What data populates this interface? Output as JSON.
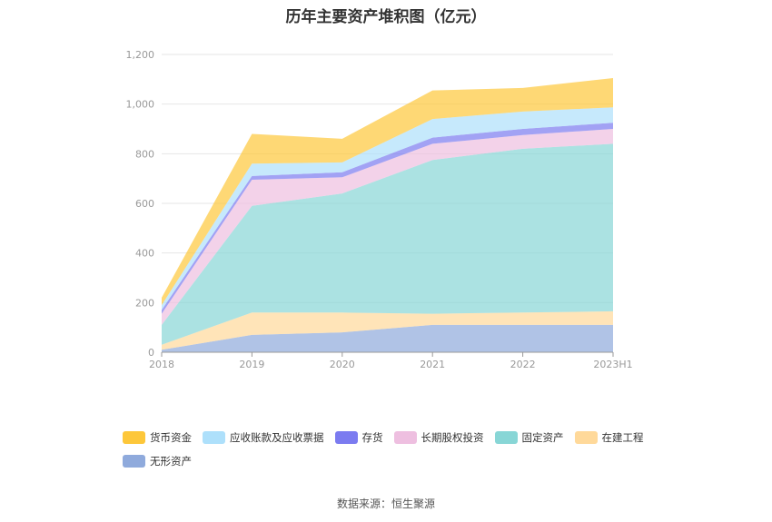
{
  "source_text": "数据来源：恒生聚源",
  "chart_data": {
    "type": "area",
    "stacked": true,
    "title": "历年主要资产堆积图（亿元）",
    "categories": [
      "2018",
      "2019",
      "2020",
      "2021",
      "2022",
      "2023H1"
    ],
    "ylim": [
      0,
      1200
    ],
    "yticks": [
      0,
      200,
      400,
      600,
      800,
      1000,
      1200
    ],
    "ytick_labels": [
      "0",
      "200",
      "400",
      "600",
      "800",
      "1,000",
      "1,200"
    ],
    "grid": true,
    "legend_position": "bottom",
    "series": [
      {
        "name": "无形资产",
        "color": "#8faadc",
        "values": [
          10,
          70,
          80,
          110,
          110,
          110
        ]
      },
      {
        "name": "在建工程",
        "color": "#ffd99a",
        "values": [
          20,
          90,
          80,
          45,
          50,
          55
        ]
      },
      {
        "name": "固定资产",
        "color": "#88d6d6",
        "values": [
          80,
          430,
          480,
          620,
          660,
          675
        ]
      },
      {
        "name": "长期股权投资",
        "color": "#eebfe0",
        "values": [
          45,
          105,
          65,
          65,
          55,
          60
        ]
      },
      {
        "name": "存货",
        "color": "#7b7bf0",
        "values": [
          15,
          15,
          20,
          25,
          25,
          25
        ]
      },
      {
        "name": "应收账款及应收票据",
        "color": "#aee0fb",
        "values": [
          20,
          50,
          40,
          75,
          70,
          62
        ]
      },
      {
        "name": "货币资金",
        "color": "#fdc73a",
        "values": [
          30,
          120,
          95,
          115,
          95,
          118
        ]
      }
    ],
    "legend_order": [
      "货币资金",
      "应收账款及应收票据",
      "存货",
      "长期股权投资",
      "固定资产",
      "在建工程",
      "无形资产"
    ]
  }
}
